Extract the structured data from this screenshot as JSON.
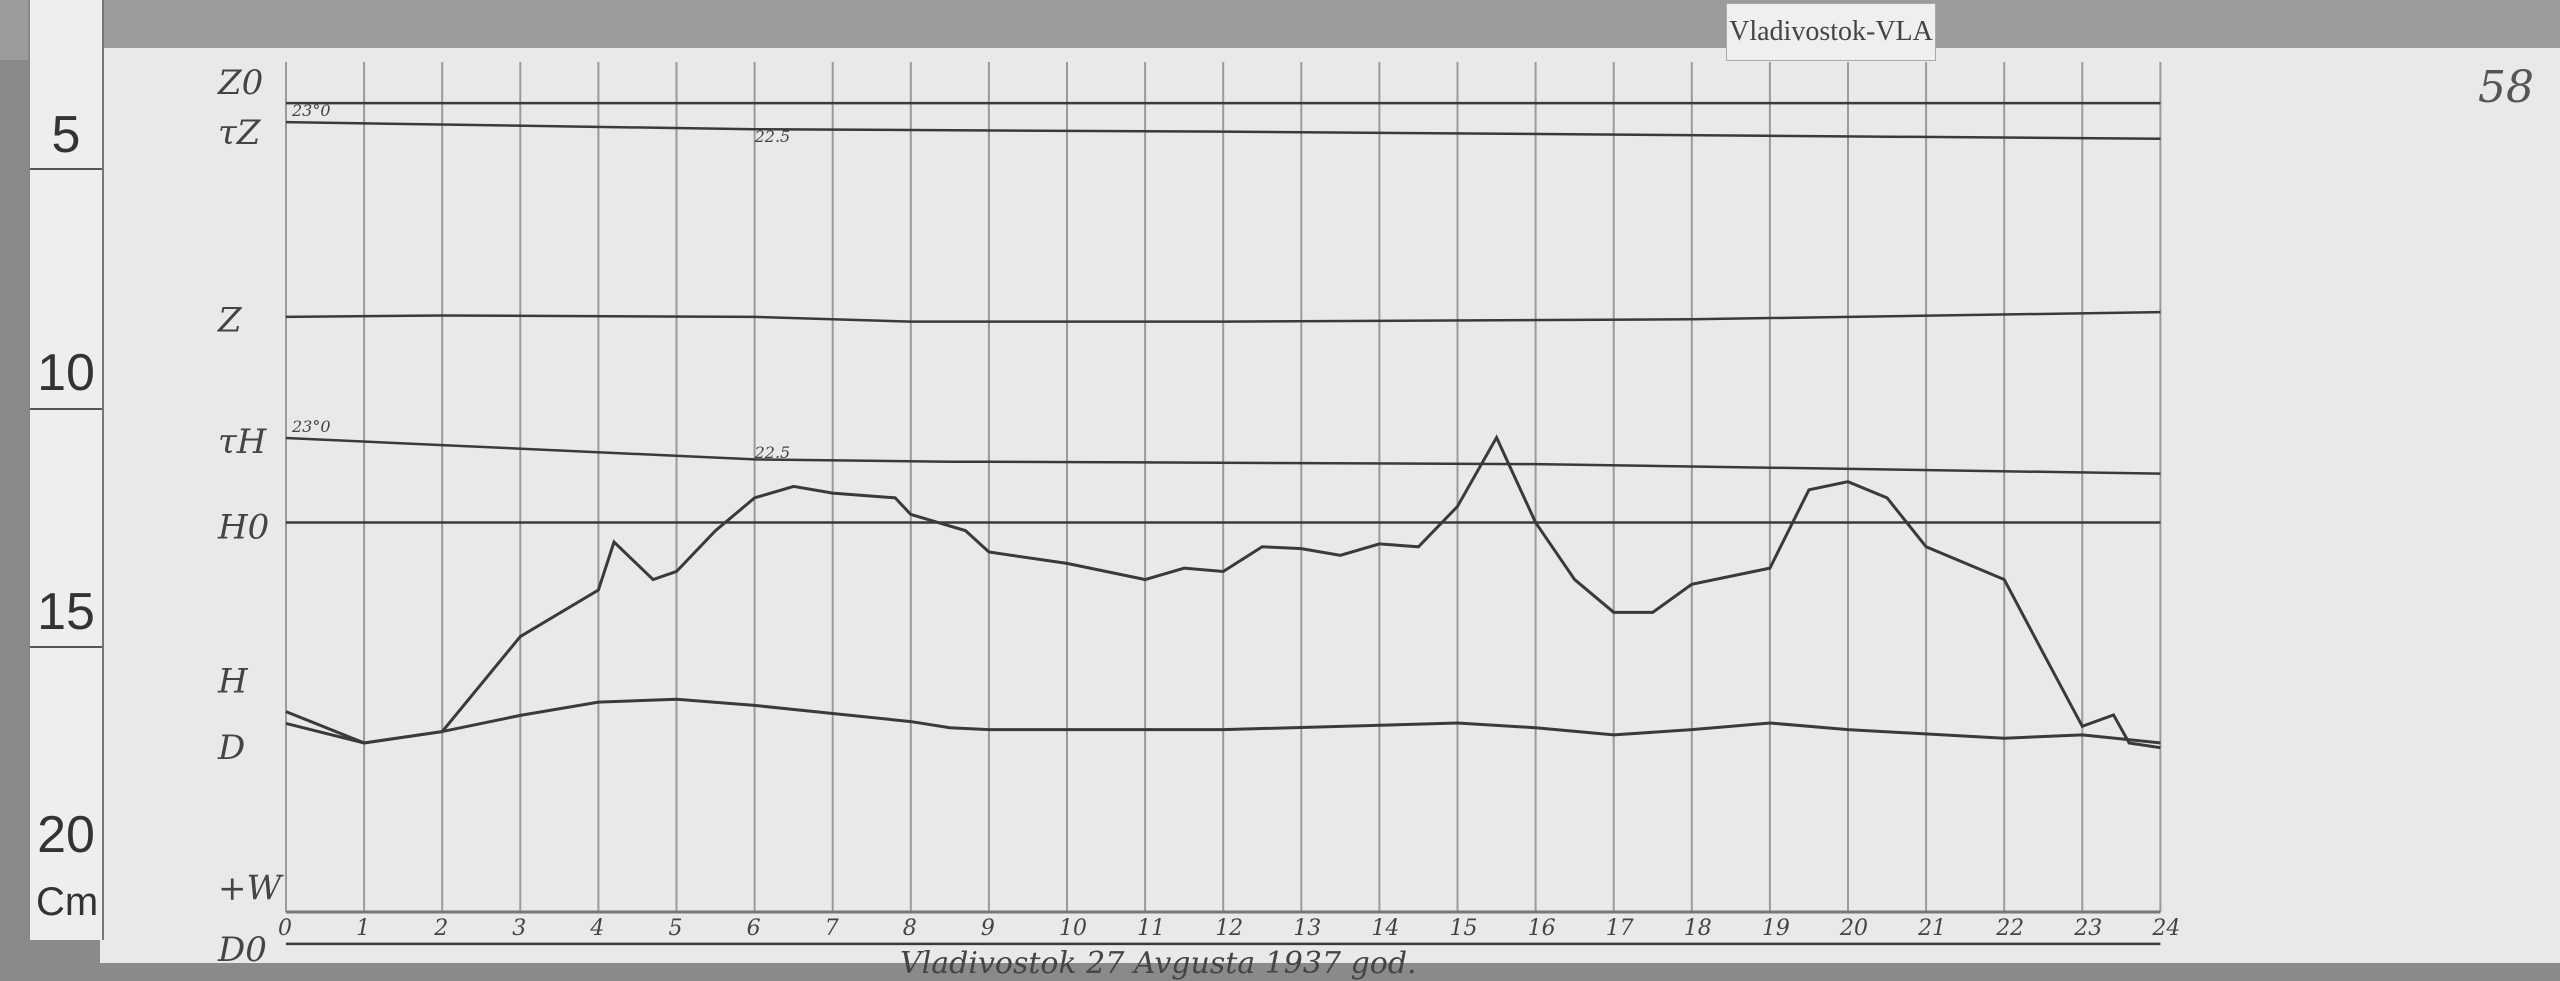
{
  "station_label": "Vladivostok-VLA",
  "sheet_number": "58",
  "ruler": {
    "unit": "Cm",
    "marks": [
      "5",
      "10",
      "15",
      "20"
    ]
  },
  "footer_note": "Vladivostok 27 Avgusta 1937 god.",
  "chart_data": {
    "type": "line",
    "title": "",
    "xlabel": "",
    "ylabel": "",
    "x_ticks": [
      "0",
      "1",
      "2",
      "3",
      "4",
      "5",
      "6",
      "7",
      "8",
      "9",
      "10",
      "11",
      "12",
      "13",
      "14",
      "15",
      "16",
      "17",
      "18",
      "19",
      "20",
      "21",
      "22",
      "23",
      "24"
    ],
    "xlim": [
      0,
      24
    ],
    "y_units": "cm (ruler)",
    "ylim": [
      4,
      22.5
    ],
    "grid": "vertical hourly lines",
    "trace_labels": [
      "Z0",
      "τZ",
      "Z",
      "τH",
      "H0",
      "H",
      "D",
      "+W",
      "D0"
    ],
    "temperature_marks": [
      {
        "trace": "τZ",
        "at_hour": 0,
        "text": "23°0"
      },
      {
        "trace": "τZ",
        "at_hour": 6,
        "text": "22.5"
      },
      {
        "trace": "τH",
        "at_hour": 0,
        "text": "23°0"
      },
      {
        "trace": "τH",
        "at_hour": 6,
        "text": "22.5"
      }
    ],
    "series": [
      {
        "name": "Z0",
        "x": [
          0,
          24
        ],
        "y": [
          4.35,
          4.35
        ]
      },
      {
        "name": "τZ",
        "x": [
          0,
          6,
          12,
          24
        ],
        "y": [
          4.75,
          4.9,
          4.95,
          5.1
        ]
      },
      {
        "name": "Z",
        "x": [
          0,
          2,
          6,
          8,
          12,
          18,
          24
        ],
        "y": [
          8.85,
          8.82,
          8.85,
          8.95,
          8.95,
          8.9,
          8.75
        ]
      },
      {
        "name": "τH",
        "x": [
          0,
          6,
          8.5,
          9,
          16,
          24
        ],
        "y": [
          11.4,
          11.85,
          11.9,
          11.9,
          11.95,
          12.15
        ]
      },
      {
        "name": "H0",
        "x": [
          0,
          24
        ],
        "y": [
          13.18,
          13.18
        ]
      },
      {
        "name": "H",
        "x": [
          0,
          1,
          2,
          3,
          4,
          4.2,
          4.7,
          5,
          5.5,
          6,
          6.5,
          7,
          7.8,
          8,
          8.7,
          9,
          10,
          11,
          11.5,
          12,
          12.5,
          13,
          13.5,
          14,
          14.5,
          15,
          15.5,
          16,
          16.5,
          17,
          17.5,
          18,
          19,
          19.5,
          20,
          20.5,
          21,
          22,
          22.5,
          23,
          23.4,
          23.6,
          24
        ],
        "y": [
          17.41,
          17.82,
          17.58,
          15.58,
          14.6,
          13.59,
          14.38,
          14.21,
          13.35,
          12.66,
          12.42,
          12.56,
          12.66,
          13.01,
          13.35,
          13.8,
          14.04,
          14.38,
          14.14,
          14.21,
          13.69,
          13.73,
          13.87,
          13.63,
          13.69,
          12.84,
          11.39,
          13.18,
          14.38,
          15.07,
          15.07,
          14.48,
          14.14,
          12.49,
          12.32,
          12.66,
          13.69,
          14.38,
          15.93,
          17.47,
          17.23,
          17.82,
          17.92
        ]
      },
      {
        "name": "D",
        "x": [
          0,
          1,
          2,
          3,
          4,
          5,
          6,
          7,
          8,
          8.5,
          9,
          12,
          15,
          16,
          17,
          18,
          19,
          20,
          22,
          23,
          24
        ],
        "y": [
          17.16,
          17.82,
          17.58,
          17.24,
          16.96,
          16.9,
          17.03,
          17.2,
          17.37,
          17.5,
          17.54,
          17.54,
          17.4,
          17.5,
          17.65,
          17.54,
          17.4,
          17.54,
          17.72,
          17.65,
          17.82
        ]
      },
      {
        "name": "D0",
        "x": [
          0,
          24
        ],
        "y": [
          22.05,
          22.05
        ]
      }
    ]
  }
}
